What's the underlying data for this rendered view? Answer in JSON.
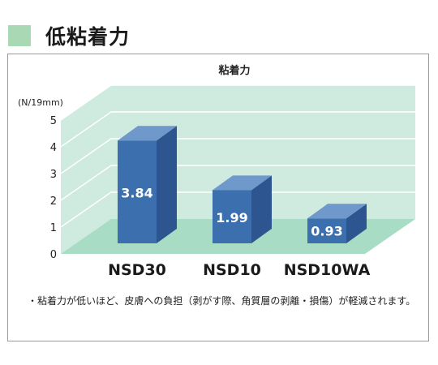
{
  "heading": {
    "title": "低粘着力",
    "marker_color": "#a8d8b4"
  },
  "chart_data": {
    "type": "bar",
    "title": "粘着力",
    "ylabel": "(N/19mm)",
    "categories": [
      "NSD30",
      "NSD10",
      "NSD10WA"
    ],
    "values": [
      3.84,
      1.99,
      0.93
    ],
    "value_labels": [
      "3.84",
      "1.99",
      "0.93"
    ],
    "ylim": [
      0,
      5
    ],
    "yticks": [
      0,
      1,
      2,
      3,
      4,
      5
    ],
    "grid": true,
    "three_d": true,
    "colors": {
      "bar": "#3b6fae",
      "floor": "#a9dcc4",
      "wall": "#cfeade",
      "grid": "#ffffff"
    }
  },
  "note": {
    "bullet": "・",
    "text": "粘着力が低いほど、皮膚への負担（剥がす際、角質層の剥離・損傷）が軽減されます。"
  }
}
